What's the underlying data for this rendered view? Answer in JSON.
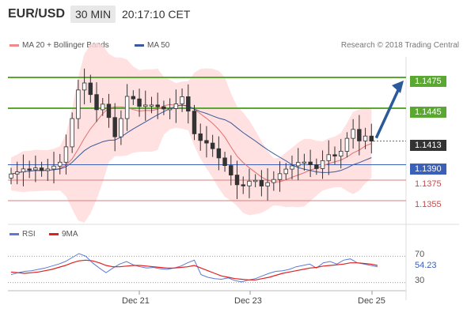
{
  "header": {
    "pair": "EUR/USD",
    "timeframe": "30 MIN",
    "time": "20:17:10 CET"
  },
  "legend": {
    "ma20_bollinger": "MA 20 + Bollinger Bands",
    "ma50": "MA 50",
    "credit": "Research © 2018 Trading Central"
  },
  "colors": {
    "green_level": "#5aa832",
    "blue_level": "#3a60b8",
    "red_level": "#d98080",
    "band_fill": "#ffd9d9",
    "ma20": "#e07070",
    "ma50": "#3a5a9a",
    "arrow": "#2a5a9a",
    "candle_up": "#ffffff",
    "candle_down": "#333333",
    "current_tag": "#333333",
    "rsi_line": "#5a7ad8",
    "rsi_9ma": "#e02020"
  },
  "chart_data": [
    {
      "type": "candlestick",
      "title": "EUR/USD",
      "x_tick_labels": [
        "Dec 21",
        "Dec 23",
        "Dec 25"
      ],
      "ylim": [
        1.1335,
        1.1495
      ],
      "levels": [
        {
          "value": 1.1475,
          "label": "1.1475",
          "kind": "resistance"
        },
        {
          "value": 1.1445,
          "label": "1.1445",
          "kind": "resistance"
        },
        {
          "value": 1.1413,
          "label": "1.1413",
          "kind": "current"
        },
        {
          "value": 1.139,
          "label": "1.1390",
          "kind": "pivot"
        },
        {
          "value": 1.1375,
          "label": "1.1375",
          "kind": "support"
        },
        {
          "value": 1.1355,
          "label": "1.1355",
          "kind": "support"
        }
      ],
      "close_path": [
        1.1381,
        1.1383,
        1.1386,
        1.1385,
        1.1387,
        1.1384,
        1.1386,
        1.1389,
        1.1393,
        1.141,
        1.144,
        1.1468,
        1.147,
        1.1455,
        1.144,
        1.1452,
        1.143,
        1.1412,
        1.1445,
        1.1462,
        1.145,
        1.1445,
        1.145,
        1.1447,
        1.1446,
        1.1443,
        1.1446,
        1.1452,
        1.146,
        1.1425,
        1.1415,
        1.1412,
        1.141,
        1.14,
        1.1392,
        1.1385,
        1.1372,
        1.1368,
        1.1372,
        1.1378,
        1.1368,
        1.1372,
        1.1374,
        1.138,
        1.1385,
        1.1388,
        1.1392,
        1.1393,
        1.1391,
        1.1385,
        1.1393,
        1.14,
        1.1398,
        1.1402,
        1.1415,
        1.1425,
        1.1413,
        1.1418,
        1.1413
      ],
      "forecast_arrow": {
        "from": 1.1413,
        "to": 1.1475
      }
    },
    {
      "type": "line",
      "title": "RSI",
      "x_tick_labels": [
        "Dec 21",
        "Dec 23",
        "Dec 25"
      ],
      "ylim": [
        20,
        80
      ],
      "ref_levels": [
        70,
        30
      ],
      "current_value": "54.23",
      "series": [
        {
          "name": "RSI",
          "values": [
            42,
            45,
            47,
            48,
            50,
            52,
            55,
            58,
            62,
            68,
            74,
            70,
            60,
            52,
            45,
            52,
            58,
            62,
            57,
            54,
            52,
            53,
            51,
            50,
            52,
            55,
            60,
            64,
            42,
            38,
            36,
            35,
            37,
            33,
            31,
            34,
            36,
            40,
            44,
            47,
            48,
            50,
            54,
            56,
            58,
            52,
            60,
            62,
            58,
            64,
            66,
            60,
            58,
            56,
            54
          ]
        },
        {
          "name": "9MA",
          "values": [
            46,
            45,
            44,
            45,
            46,
            48,
            50,
            53,
            56,
            60,
            63,
            64,
            63,
            60,
            56,
            54,
            54,
            55,
            56,
            56,
            55,
            54,
            53,
            52,
            52,
            53,
            54,
            56,
            52,
            48,
            44,
            40,
            38,
            36,
            35,
            34,
            34,
            36,
            38,
            41,
            44,
            46,
            48,
            50,
            52,
            53,
            55,
            56,
            57,
            58,
            60,
            60,
            59,
            58,
            56
          ]
        }
      ]
    }
  ]
}
